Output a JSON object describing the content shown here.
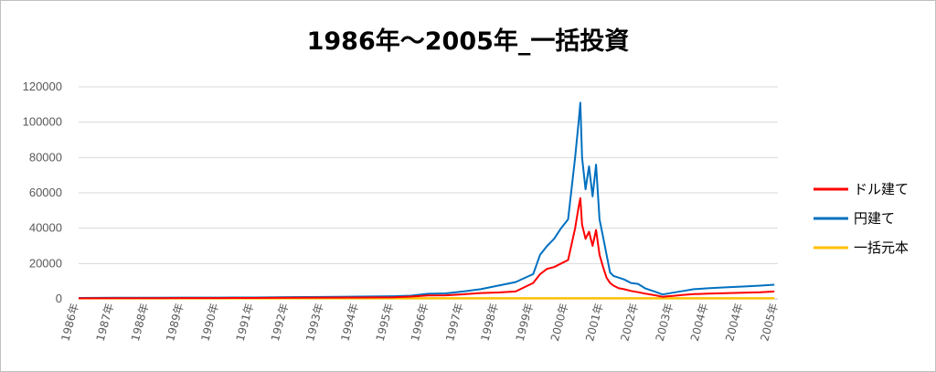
{
  "chart_data": {
    "type": "line",
    "title": "1986年～2005年_一括投資",
    "xlabel": "",
    "ylabel": "",
    "ylim": [
      0,
      120000
    ],
    "yticks": [
      "0",
      "20000",
      "40000",
      "60000",
      "80000",
      "100000",
      "120000"
    ],
    "x_tick_labels": [
      "1986年",
      "1987年",
      "1988年",
      "1989年",
      "1990年",
      "1991年",
      "1992年",
      "1993年",
      "1994年",
      "1995年",
      "1996年",
      "1997年",
      "1998年",
      "1999年",
      "2000年",
      "2001年",
      "2002年",
      "2003年",
      "2004年",
      "2004年",
      "2005年"
    ],
    "x_range": [
      1986.0,
      2006.0
    ],
    "grid": true,
    "legend_position": "right",
    "series": [
      {
        "name": "ドル建て",
        "color": "#FF0000",
        "x": [
          1986.0,
          1987.0,
          1988.0,
          1989.0,
          1990.0,
          1991.0,
          1992.0,
          1993.0,
          1994.0,
          1995.0,
          1995.5,
          1996.0,
          1996.5,
          1997.0,
          1997.5,
          1998.0,
          1998.5,
          1999.0,
          1999.2,
          1999.4,
          1999.6,
          1999.8,
          2000.0,
          2000.2,
          2000.3,
          2000.35,
          2000.4,
          2000.5,
          2000.6,
          2000.7,
          2000.8,
          2000.9,
          2001.0,
          2001.1,
          2001.2,
          2001.3,
          2001.45,
          2001.6,
          2001.8,
          2002.0,
          2002.2,
          2002.5,
          2002.7,
          2002.85,
          2003.0,
          2003.3,
          2003.6,
          2004.0,
          2004.5,
          2005.0,
          2005.5,
          2005.9
        ],
        "values": [
          300,
          350,
          400,
          450,
          450,
          500,
          600,
          700,
          800,
          900,
          1300,
          1900,
          2000,
          2600,
          3300,
          3600,
          4200,
          9000,
          14000,
          17000,
          18000,
          20000,
          22000,
          40000,
          52000,
          57000,
          42000,
          34000,
          38000,
          30000,
          39000,
          25000,
          18000,
          12000,
          9000,
          7500,
          6000,
          5500,
          4500,
          3800,
          3000,
          2000,
          1200,
          1500,
          1700,
          2300,
          2700,
          3000,
          3200,
          3500,
          3800,
          4200
        ]
      },
      {
        "name": "円建て",
        "color": "#0070C0",
        "x": [
          1986.0,
          1987.0,
          1988.0,
          1989.0,
          1990.0,
          1991.0,
          1992.0,
          1993.0,
          1994.0,
          1995.0,
          1995.5,
          1996.0,
          1996.5,
          1997.0,
          1997.5,
          1998.0,
          1998.5,
          1999.0,
          1999.2,
          1999.4,
          1999.6,
          1999.8,
          2000.0,
          2000.2,
          2000.3,
          2000.35,
          2000.4,
          2000.5,
          2000.6,
          2000.7,
          2000.8,
          2000.9,
          2001.0,
          2001.1,
          2001.2,
          2001.3,
          2001.45,
          2001.6,
          2001.8,
          2002.0,
          2002.2,
          2002.5,
          2002.7,
          2002.85,
          2003.0,
          2003.3,
          2003.6,
          2004.0,
          2004.5,
          2005.0,
          2005.5,
          2005.9
        ],
        "values": [
          500,
          600,
          650,
          700,
          750,
          800,
          1000,
          1100,
          1300,
          1500,
          1800,
          2900,
          3100,
          4200,
          5500,
          7500,
          9500,
          14000,
          25000,
          30000,
          34000,
          40000,
          45000,
          80000,
          100000,
          111000,
          80000,
          62000,
          75000,
          58000,
          76000,
          45000,
          35000,
          25000,
          15000,
          13000,
          12000,
          11000,
          9000,
          8500,
          6000,
          4000,
          2500,
          3000,
          3500,
          4500,
          5500,
          6000,
          6500,
          7000,
          7500,
          8000
        ]
      },
      {
        "name": "一括元本",
        "color": "#FFC000",
        "x": [
          1986.0,
          2005.9
        ],
        "values": [
          300,
          300
        ]
      }
    ]
  }
}
